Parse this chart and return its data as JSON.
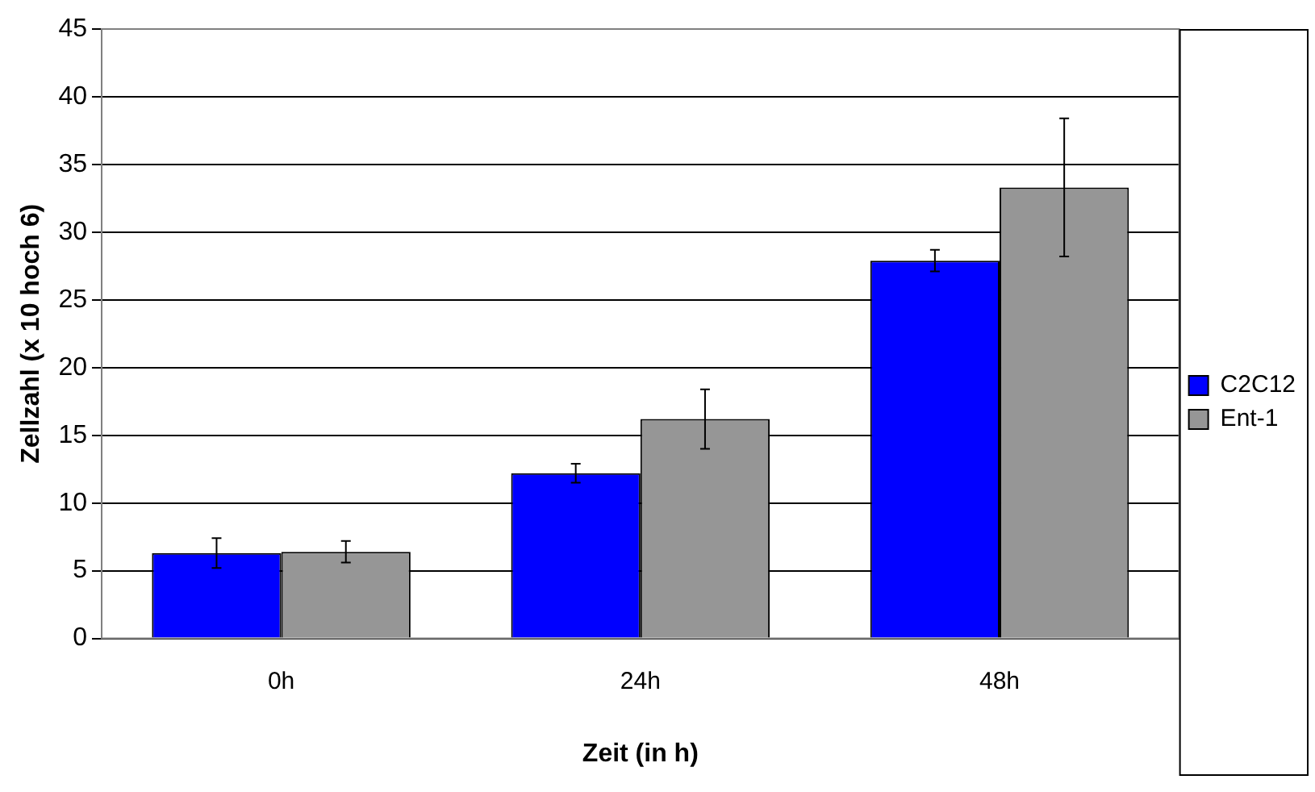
{
  "chart_data": {
    "type": "bar",
    "xlabel": "Zeit (in h)",
    "ylabel": "Zellzahl (x 10 hoch 6)",
    "categories": [
      "0h",
      "24h",
      "48h"
    ],
    "series": [
      {
        "name": "C2C12",
        "color": "#0000ff",
        "values": [
          6.3,
          12.2,
          27.9
        ],
        "errors": [
          1.1,
          0.7,
          0.8
        ]
      },
      {
        "name": "Ent-1",
        "color": "#969696",
        "values": [
          6.4,
          16.2,
          33.3
        ],
        "errors": [
          0.8,
          2.2,
          5.1
        ]
      }
    ],
    "ylim": [
      0,
      45
    ],
    "yticks": [
      0,
      5,
      10,
      15,
      20,
      25,
      30,
      35,
      40,
      45
    ],
    "grid": "y",
    "legend": "right"
  }
}
